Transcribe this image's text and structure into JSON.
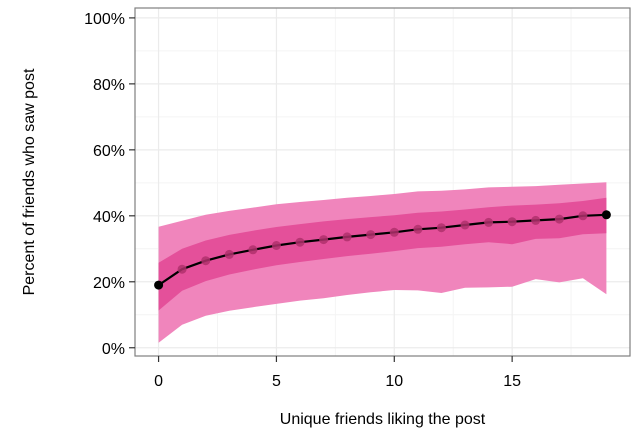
{
  "chart_data": {
    "type": "line",
    "title": "",
    "xlabel": "Unique friends liking the post",
    "ylabel": "Percent of friends who saw post",
    "xlim": [
      -1,
      20
    ],
    "ylim": [
      -2.5,
      103
    ],
    "x_ticks": [
      0,
      5,
      10,
      15
    ],
    "y_ticks": [
      0,
      20,
      40,
      60,
      80,
      100
    ],
    "y_tick_labels": [
      "0%",
      "20%",
      "40%",
      "60%",
      "80%",
      "100%"
    ],
    "grid": true,
    "colors": {
      "outer_band": "#f085bc",
      "inner_band": "#e4509a",
      "line": "#000000",
      "points": "#b0306c",
      "panel_border": "#7f7f7f",
      "grid": "#ebebeb"
    },
    "x": [
      0,
      1,
      2,
      3,
      4,
      5,
      6,
      7,
      8,
      9,
      10,
      11,
      12,
      13,
      14,
      15,
      16,
      17,
      18,
      19
    ],
    "mean": [
      19,
      23.8,
      26.4,
      28.3,
      29.7,
      31,
      32,
      32.8,
      33.6,
      34.3,
      35,
      35.9,
      36.4,
      37.2,
      38,
      38.2,
      38.6,
      39,
      40,
      40.3
    ],
    "outer_band_upper": [
      36.7,
      38.5,
      40.3,
      41.5,
      42.5,
      43.5,
      44.2,
      44.8,
      45.5,
      46,
      46.6,
      47.4,
      47.6,
      48,
      48.6,
      48.8,
      49,
      49.4,
      49.8,
      50.2
    ],
    "outer_band_lower": [
      1.5,
      7,
      9.7,
      11.2,
      12.3,
      13.3,
      14.3,
      15,
      16,
      16.8,
      17.5,
      17.4,
      16.6,
      18.2,
      18.3,
      18.5,
      20.8,
      19.8,
      21.1,
      16.2
    ],
    "inner_band_upper": [
      25.8,
      30,
      32.5,
      34.2,
      35.5,
      36.6,
      37.5,
      38.3,
      39,
      39.6,
      40.2,
      40.9,
      41.3,
      41.9,
      42.6,
      43.1,
      43.4,
      43.8,
      44.5,
      45.5
    ],
    "inner_band_lower": [
      11.3,
      17.3,
      20.2,
      22.2,
      23.7,
      25,
      26,
      26.9,
      27.8,
      28.5,
      29.3,
      30.2,
      30.6,
      31.4,
      32,
      31.4,
      33,
      33.2,
      34.4,
      34.7
    ]
  }
}
